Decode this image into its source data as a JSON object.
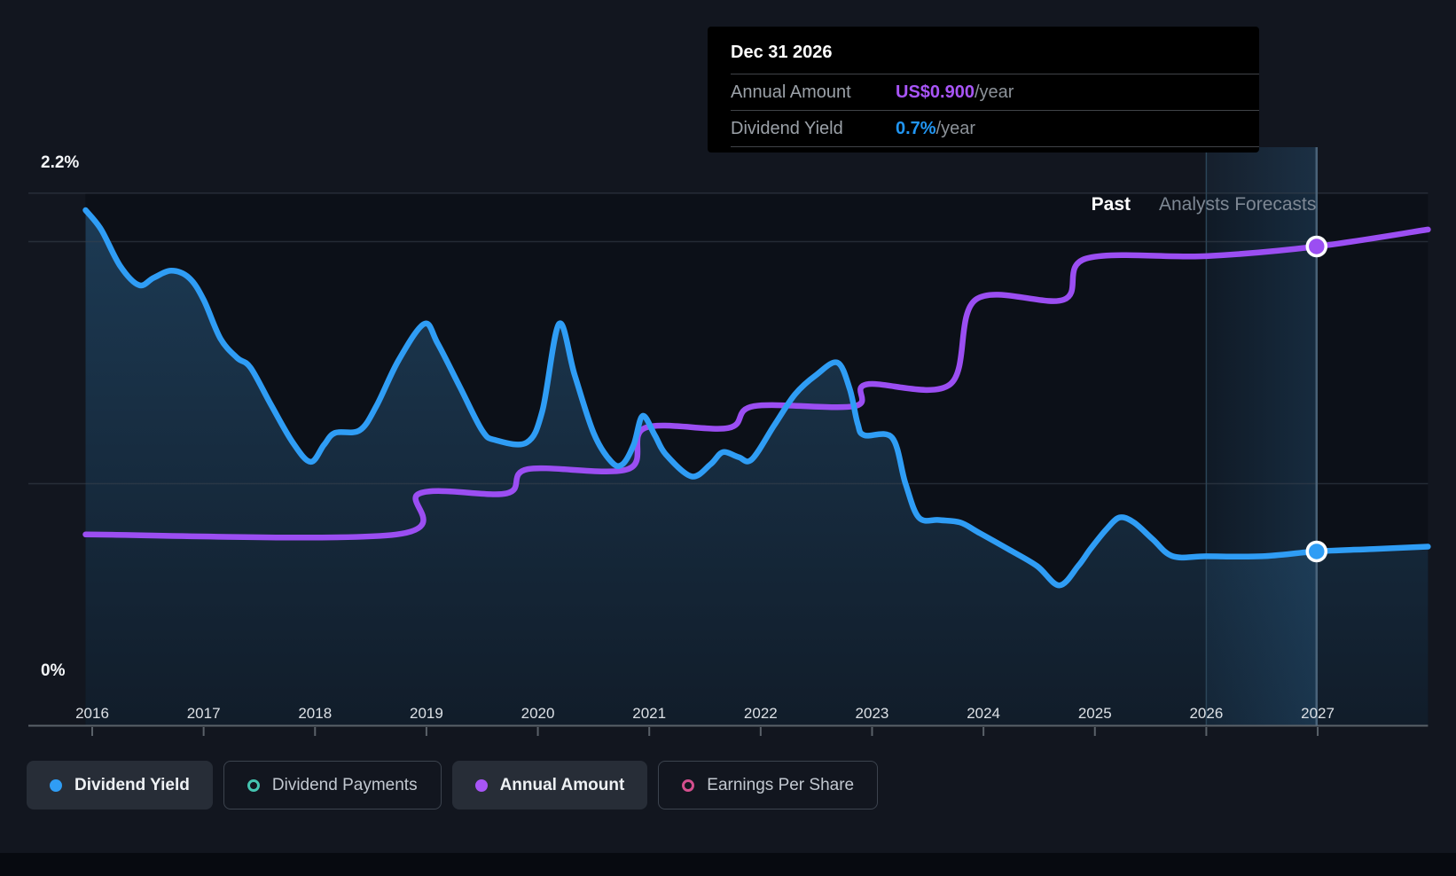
{
  "tooltip": {
    "date": "Dec 31 2026",
    "rows": [
      {
        "label": "Annual Amount",
        "value": "US$0.900",
        "suffix": "/year",
        "color": "#a855f7"
      },
      {
        "label": "Dividend Yield",
        "value": "0.7%",
        "suffix": "/year",
        "color": "#2196f3"
      }
    ]
  },
  "axis": {
    "y_max_label": "2.2%",
    "y_min_label": "0%",
    "years": [
      2016,
      2017,
      2018,
      2019,
      2020,
      2021,
      2022,
      2023,
      2024,
      2025,
      2026,
      2027
    ]
  },
  "chart_data": {
    "type": "area",
    "past_label": "Past",
    "forecast_label": "Analysts Forecasts",
    "ylim": [
      0,
      2.2
    ],
    "xlim": [
      2015.94,
      2027.99
    ],
    "grid_pct": [
      0,
      1,
      2,
      2.2
    ],
    "forecast_band": {
      "from": 2026,
      "to": 2027
    },
    "hover_x": 2026.99,
    "series": [
      {
        "name": "Dividend Yield",
        "unit": "percent",
        "color": "#2f9df5",
        "style": "area-line",
        "points": [
          [
            2015.94,
            2.13
          ],
          [
            2016.08,
            2.05
          ],
          [
            2016.25,
            1.9
          ],
          [
            2016.42,
            1.82
          ],
          [
            2016.55,
            1.85
          ],
          [
            2016.71,
            1.88
          ],
          [
            2016.87,
            1.85
          ],
          [
            2017.0,
            1.76
          ],
          [
            2017.15,
            1.6
          ],
          [
            2017.3,
            1.52
          ],
          [
            2017.42,
            1.48
          ],
          [
            2017.6,
            1.33
          ],
          [
            2017.8,
            1.17
          ],
          [
            2017.96,
            1.09
          ],
          [
            2018.08,
            1.16
          ],
          [
            2018.18,
            1.21
          ],
          [
            2018.4,
            1.22
          ],
          [
            2018.55,
            1.32
          ],
          [
            2018.75,
            1.51
          ],
          [
            2018.98,
            1.66
          ],
          [
            2019.1,
            1.58
          ],
          [
            2019.3,
            1.4
          ],
          [
            2019.5,
            1.22
          ],
          [
            2019.62,
            1.18
          ],
          [
            2019.9,
            1.17
          ],
          [
            2020.04,
            1.3
          ],
          [
            2020.19,
            1.66
          ],
          [
            2020.33,
            1.45
          ],
          [
            2020.5,
            1.21
          ],
          [
            2020.66,
            1.09
          ],
          [
            2020.76,
            1.08
          ],
          [
            2020.86,
            1.16
          ],
          [
            2020.94,
            1.28
          ],
          [
            2021.05,
            1.2
          ],
          [
            2021.15,
            1.12
          ],
          [
            2021.38,
            1.03
          ],
          [
            2021.55,
            1.08
          ],
          [
            2021.66,
            1.13
          ],
          [
            2021.8,
            1.11
          ],
          [
            2021.92,
            1.1
          ],
          [
            2022.12,
            1.24
          ],
          [
            2022.31,
            1.37
          ],
          [
            2022.5,
            1.45
          ],
          [
            2022.69,
            1.5
          ],
          [
            2022.8,
            1.39
          ],
          [
            2022.87,
            1.25
          ],
          [
            2022.93,
            1.2
          ],
          [
            2023.18,
            1.19
          ],
          [
            2023.3,
            1.0
          ],
          [
            2023.42,
            0.86
          ],
          [
            2023.6,
            0.85
          ],
          [
            2023.79,
            0.84
          ],
          [
            2023.95,
            0.8
          ],
          [
            2024.22,
            0.73
          ],
          [
            2024.48,
            0.66
          ],
          [
            2024.68,
            0.58
          ],
          [
            2024.85,
            0.66
          ],
          [
            2024.96,
            0.73
          ],
          [
            2025.1,
            0.81
          ],
          [
            2025.22,
            0.86
          ],
          [
            2025.35,
            0.84
          ],
          [
            2025.52,
            0.77
          ],
          [
            2025.7,
            0.7
          ],
          [
            2026.0,
            0.7
          ],
          [
            2026.5,
            0.7
          ],
          [
            2026.99,
            0.72
          ],
          [
            2027.5,
            0.73
          ],
          [
            2027.99,
            0.74
          ]
        ]
      },
      {
        "name": "Annual Amount",
        "unit": "left-axis-equivalent percent (own hidden scale, US$/year)",
        "color": "#9b4ef2",
        "style": "line",
        "points": [
          [
            2015.94,
            0.79
          ],
          [
            2018.73,
            0.79
          ],
          [
            2018.94,
            0.96
          ],
          [
            2019.72,
            0.96
          ],
          [
            2019.91,
            1.06
          ],
          [
            2020.81,
            1.06
          ],
          [
            2020.96,
            1.23
          ],
          [
            2021.71,
            1.23
          ],
          [
            2021.94,
            1.32
          ],
          [
            2022.84,
            1.32
          ],
          [
            2022.95,
            1.41
          ],
          [
            2023.7,
            1.41
          ],
          [
            2023.93,
            1.76
          ],
          [
            2024.72,
            1.76
          ],
          [
            2024.92,
            1.93
          ],
          [
            2026.0,
            1.94
          ],
          [
            2026.99,
            1.98
          ],
          [
            2027.99,
            2.05
          ]
        ]
      }
    ],
    "markers": [
      {
        "series": "Annual Amount",
        "x": 2026.99,
        "y": 1.98,
        "color": "#9b4ef2",
        "label": "US$0.900/year"
      },
      {
        "series": "Dividend Yield",
        "x": 2026.99,
        "y": 0.72,
        "color": "#2f9df5",
        "label": "0.7%/year"
      }
    ]
  },
  "legend": {
    "items": [
      {
        "label": "Dividend Yield",
        "marker": "filled",
        "color": "#2f9df5"
      },
      {
        "label": "Dividend Payments",
        "marker": "ring",
        "color": "#45c4b0"
      },
      {
        "label": "Annual Amount",
        "marker": "filled",
        "color": "#a855f7"
      },
      {
        "label": "Earnings Per Share",
        "marker": "ring",
        "color": "#d44f8e"
      }
    ]
  },
  "colors": {
    "background": "#12161f",
    "plot_background": "#0c1018",
    "grid": "#39424e",
    "axis_line": "#5a6169",
    "hover_line": "#566f85",
    "band": "#3c8cc8"
  }
}
